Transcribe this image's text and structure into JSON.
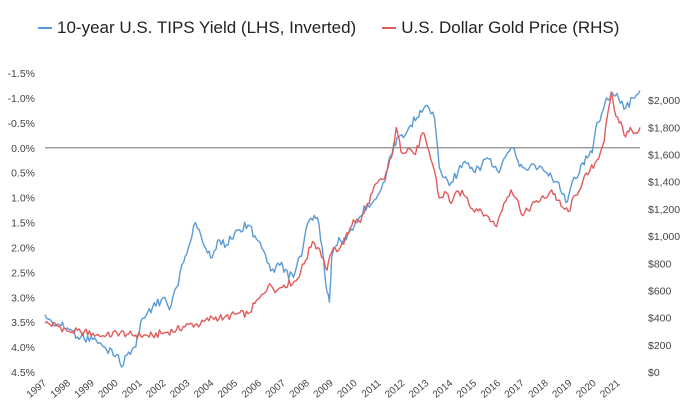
{
  "chart_data": {
    "type": "line",
    "title": "",
    "legend_position": "top",
    "grid": false,
    "x_range": [
      1997.0,
      2021.9
    ],
    "x_ticks": [
      "1997",
      "1998",
      "1999",
      "2000",
      "2001",
      "2002",
      "2003",
      "2004",
      "2005",
      "2006",
      "2007",
      "2008",
      "2009",
      "2010",
      "2011",
      "2012",
      "2013",
      "2014",
      "2015",
      "2016",
      "2017",
      "2018",
      "2019",
      "2020",
      "2021"
    ],
    "left_axis": {
      "inverted": true,
      "range": [
        -1.5,
        4.5
      ],
      "ticks": [
        {
          "v": -1.5,
          "label": "-1.5%"
        },
        {
          "v": -1.0,
          "label": "-1.0%"
        },
        {
          "v": -0.5,
          "label": "-0.5%"
        },
        {
          "v": 0.0,
          "label": "0.0%"
        },
        {
          "v": 0.5,
          "label": "0.5%"
        },
        {
          "v": 1.0,
          "label": "1.0%"
        },
        {
          "v": 1.5,
          "label": "1.5%"
        },
        {
          "v": 2.0,
          "label": "2.0%"
        },
        {
          "v": 2.5,
          "label": "2.5%"
        },
        {
          "v": 3.0,
          "label": "3.0%"
        },
        {
          "v": 3.5,
          "label": "3.5%"
        },
        {
          "v": 4.0,
          "label": "4.0%"
        },
        {
          "v": 4.5,
          "label": "4.5%"
        }
      ]
    },
    "right_axis": {
      "range": [
        0,
        2200
      ],
      "ticks": [
        {
          "v": 0,
          "label": "$0"
        },
        {
          "v": 200,
          "label": "$200"
        },
        {
          "v": 400,
          "label": "$400"
        },
        {
          "v": 600,
          "label": "$600"
        },
        {
          "v": 800,
          "label": "$800"
        },
        {
          "v": 1000,
          "label": "$1,000"
        },
        {
          "v": 1200,
          "label": "$1,200"
        },
        {
          "v": 1400,
          "label": "$1,400"
        },
        {
          "v": 1600,
          "label": "$1,600"
        },
        {
          "v": 1800,
          "label": "$1,800"
        },
        {
          "v": 2000,
          "label": "$2,000"
        }
      ]
    },
    "series": [
      {
        "name": "10-year U.S. TIPS Yield (LHS, Inverted)",
        "axis": "left",
        "color": "#5b9bd5",
        "points": [
          [
            1997.0,
            3.35
          ],
          [
            1997.3,
            3.5
          ],
          [
            1997.6,
            3.55
          ],
          [
            1998.0,
            3.65
          ],
          [
            1998.5,
            3.8
          ],
          [
            1999.0,
            3.85
          ],
          [
            1999.5,
            4.0
          ],
          [
            2000.0,
            4.15
          ],
          [
            2000.2,
            4.4
          ],
          [
            2000.5,
            4.1
          ],
          [
            2000.8,
            4.0
          ],
          [
            2001.0,
            3.5
          ],
          [
            2001.3,
            3.3
          ],
          [
            2001.5,
            3.2
          ],
          [
            2002.0,
            3.0
          ],
          [
            2002.2,
            3.25
          ],
          [
            2002.5,
            2.8
          ],
          [
            2002.8,
            2.3
          ],
          [
            2003.0,
            2.0
          ],
          [
            2003.3,
            1.5
          ],
          [
            2003.6,
            1.9
          ],
          [
            2004.0,
            2.2
          ],
          [
            2004.3,
            1.85
          ],
          [
            2004.6,
            1.95
          ],
          [
            2005.0,
            1.65
          ],
          [
            2005.5,
            1.55
          ],
          [
            2006.0,
            1.9
          ],
          [
            2006.3,
            2.3
          ],
          [
            2006.6,
            2.5
          ],
          [
            2006.9,
            2.3
          ],
          [
            2007.0,
            2.5
          ],
          [
            2007.4,
            2.6
          ],
          [
            2007.8,
            2.0
          ],
          [
            2008.0,
            1.5
          ],
          [
            2008.4,
            1.4
          ],
          [
            2008.6,
            2.0
          ],
          [
            2008.8,
            2.9
          ],
          [
            2008.9,
            3.1
          ],
          [
            2009.0,
            2.2
          ],
          [
            2009.3,
            1.8
          ],
          [
            2009.6,
            1.85
          ],
          [
            2010.0,
            1.5
          ],
          [
            2010.5,
            1.15
          ],
          [
            2011.0,
            0.9
          ],
          [
            2011.3,
            0.5
          ],
          [
            2011.6,
            -0.1
          ],
          [
            2012.0,
            -0.2
          ],
          [
            2012.3,
            -0.45
          ],
          [
            2012.7,
            -0.75
          ],
          [
            2013.0,
            -0.85
          ],
          [
            2013.3,
            -0.6
          ],
          [
            2013.5,
            0.4
          ],
          [
            2013.7,
            0.6
          ],
          [
            2014.0,
            0.7
          ],
          [
            2014.5,
            0.3
          ],
          [
            2015.0,
            0.5
          ],
          [
            2015.5,
            0.2
          ],
          [
            2016.0,
            0.5
          ],
          [
            2016.5,
            0.0
          ],
          [
            2017.0,
            0.4
          ],
          [
            2017.5,
            0.35
          ],
          [
            2018.0,
            0.5
          ],
          [
            2018.5,
            0.7
          ],
          [
            2018.8,
            1.1
          ],
          [
            2019.0,
            0.8
          ],
          [
            2019.5,
            0.3
          ],
          [
            2019.9,
            0.1
          ],
          [
            2020.1,
            -0.5
          ],
          [
            2020.3,
            -0.7
          ],
          [
            2020.5,
            -1.0
          ],
          [
            2020.8,
            -1.05
          ],
          [
            2021.0,
            -1.0
          ],
          [
            2021.3,
            -0.8
          ],
          [
            2021.6,
            -1.0
          ],
          [
            2021.9,
            -1.15
          ]
        ]
      },
      {
        "name": "U.S. Dollar Gold Price (RHS)",
        "axis": "right",
        "color": "#e05c5c",
        "points": [
          [
            1997.0,
            360
          ],
          [
            1997.5,
            340
          ],
          [
            1998.0,
            300
          ],
          [
            1998.5,
            295
          ],
          [
            1999.0,
            285
          ],
          [
            1999.5,
            260
          ],
          [
            2000.0,
            290
          ],
          [
            2000.5,
            280
          ],
          [
            2001.0,
            265
          ],
          [
            2001.5,
            270
          ],
          [
            2002.0,
            290
          ],
          [
            2002.5,
            310
          ],
          [
            2003.0,
            350
          ],
          [
            2003.5,
            350
          ],
          [
            2004.0,
            400
          ],
          [
            2004.5,
            400
          ],
          [
            2005.0,
            425
          ],
          [
            2005.5,
            430
          ],
          [
            2006.0,
            550
          ],
          [
            2006.4,
            650
          ],
          [
            2006.7,
            600
          ],
          [
            2007.0,
            640
          ],
          [
            2007.5,
            670
          ],
          [
            2007.9,
            820
          ],
          [
            2008.2,
            960
          ],
          [
            2008.5,
            900
          ],
          [
            2008.8,
            750
          ],
          [
            2009.0,
            880
          ],
          [
            2009.5,
            940
          ],
          [
            2009.9,
            1120
          ],
          [
            2010.2,
            1100
          ],
          [
            2010.5,
            1240
          ],
          [
            2010.9,
            1390
          ],
          [
            2011.2,
            1420
          ],
          [
            2011.5,
            1580
          ],
          [
            2011.7,
            1800
          ],
          [
            2011.9,
            1620
          ],
          [
            2012.2,
            1650
          ],
          [
            2012.5,
            1600
          ],
          [
            2012.8,
            1760
          ],
          [
            2013.0,
            1660
          ],
          [
            2013.3,
            1480
          ],
          [
            2013.5,
            1280
          ],
          [
            2013.8,
            1320
          ],
          [
            2014.0,
            1240
          ],
          [
            2014.3,
            1330
          ],
          [
            2014.6,
            1290
          ],
          [
            2014.9,
            1200
          ],
          [
            2015.2,
            1200
          ],
          [
            2015.5,
            1150
          ],
          [
            2015.9,
            1070
          ],
          [
            2016.2,
            1240
          ],
          [
            2016.5,
            1340
          ],
          [
            2016.8,
            1260
          ],
          [
            2017.0,
            1150
          ],
          [
            2017.5,
            1250
          ],
          [
            2017.9,
            1280
          ],
          [
            2018.2,
            1340
          ],
          [
            2018.6,
            1220
          ],
          [
            2018.9,
            1180
          ],
          [
            2019.2,
            1300
          ],
          [
            2019.5,
            1400
          ],
          [
            2019.8,
            1480
          ],
          [
            2020.1,
            1560
          ],
          [
            2020.4,
            1700
          ],
          [
            2020.6,
            1950
          ],
          [
            2020.7,
            2060
          ],
          [
            2020.9,
            1880
          ],
          [
            2021.1,
            1840
          ],
          [
            2021.3,
            1730
          ],
          [
            2021.5,
            1800
          ],
          [
            2021.7,
            1760
          ],
          [
            2021.9,
            1800
          ]
        ]
      }
    ]
  }
}
